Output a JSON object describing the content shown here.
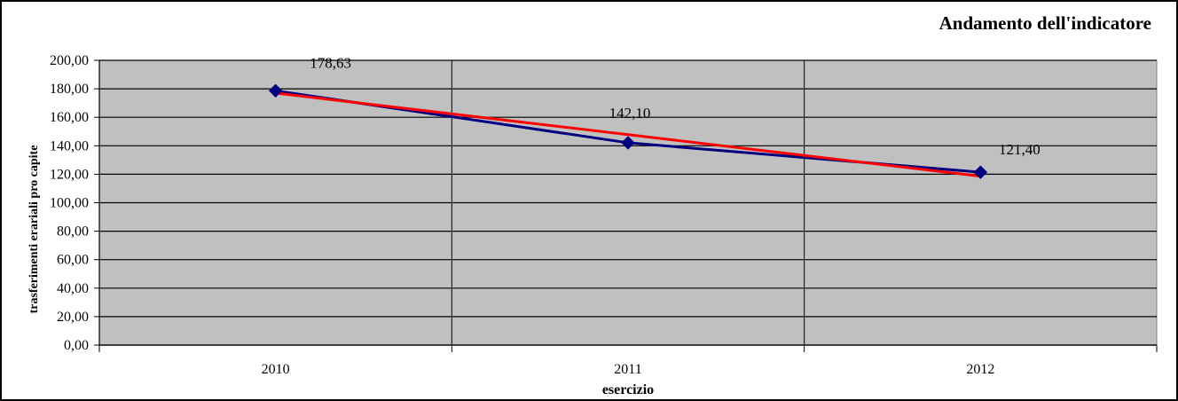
{
  "chart_data": {
    "type": "line",
    "title": "Andamento dell'indicatore",
    "xlabel": "esercizio",
    "ylabel": "trasferimenti erariali pro capite",
    "categories": [
      "2010",
      "2011",
      "2012"
    ],
    "ylim": [
      0,
      200
    ],
    "y_ticks": [
      0,
      20,
      40,
      60,
      80,
      100,
      120,
      140,
      160,
      180,
      200
    ],
    "y_tick_labels": [
      "0,00",
      "20,00",
      "40,00",
      "60,00",
      "80,00",
      "100,00",
      "120,00",
      "140,00",
      "160,00",
      "180,00",
      "200,00"
    ],
    "grid": true,
    "series": [
      {
        "values": [
          178.63,
          142.1,
          121.4
        ],
        "data_labels": [
          "178,63",
          "142,10",
          "121,40"
        ],
        "color": "#000080",
        "marker": "diamond"
      },
      {
        "values": [
          177.0,
          147.8,
          118.6
        ],
        "color": "#ff0000",
        "style": "linear trendline"
      }
    ],
    "plot_background": "#c0c0c0"
  }
}
